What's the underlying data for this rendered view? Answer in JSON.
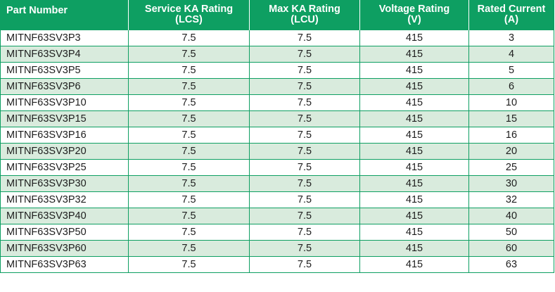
{
  "table": {
    "headers": [
      {
        "line1": "Part Number",
        "line2": ""
      },
      {
        "line1": "Service KA Rating",
        "line2": "(LCS)"
      },
      {
        "line1": "Max KA Rating",
        "line2": "(LCU)"
      },
      {
        "line1": "Voltage Rating",
        "line2": "(V)"
      },
      {
        "line1": "Rated Current",
        "line2": "(A)"
      }
    ],
    "rows": [
      [
        "MITNF63SV3P3",
        "7.5",
        "7.5",
        "415",
        "3"
      ],
      [
        "MITNF63SV3P4",
        "7.5",
        "7.5",
        "415",
        "4"
      ],
      [
        "MITNF63SV3P5",
        "7.5",
        "7.5",
        "415",
        "5"
      ],
      [
        "MITNF63SV3P6",
        "7.5",
        "7.5",
        "415",
        "6"
      ],
      [
        "MITNF63SV3P10",
        "7.5",
        "7.5",
        "415",
        "10"
      ],
      [
        "MITNF63SV3P15",
        "7.5",
        "7.5",
        "415",
        "15"
      ],
      [
        "MITNF63SV3P16",
        "7.5",
        "7.5",
        "415",
        "16"
      ],
      [
        "MITNF63SV3P20",
        "7.5",
        "7.5",
        "415",
        "20"
      ],
      [
        "MITNF63SV3P25",
        "7.5",
        "7.5",
        "415",
        "25"
      ],
      [
        "MITNF63SV3P30",
        "7.5",
        "7.5",
        "415",
        "30"
      ],
      [
        "MITNF63SV3P32",
        "7.5",
        "7.5",
        "415",
        "32"
      ],
      [
        "MITNF63SV3P40",
        "7.5",
        "7.5",
        "415",
        "40"
      ],
      [
        "MITNF63SV3P50",
        "7.5",
        "7.5",
        "415",
        "50"
      ],
      [
        "MITNF63SV3P60",
        "7.5",
        "7.5",
        "415",
        "60"
      ],
      [
        "MITNF63SV3P63",
        "7.5",
        "7.5",
        "415",
        "63"
      ]
    ]
  },
  "colors": {
    "header_bg": "#0e9f62",
    "header_text": "#ffffff",
    "alt_row_bg": "#d9ebdd",
    "border": "#0e9f62"
  }
}
